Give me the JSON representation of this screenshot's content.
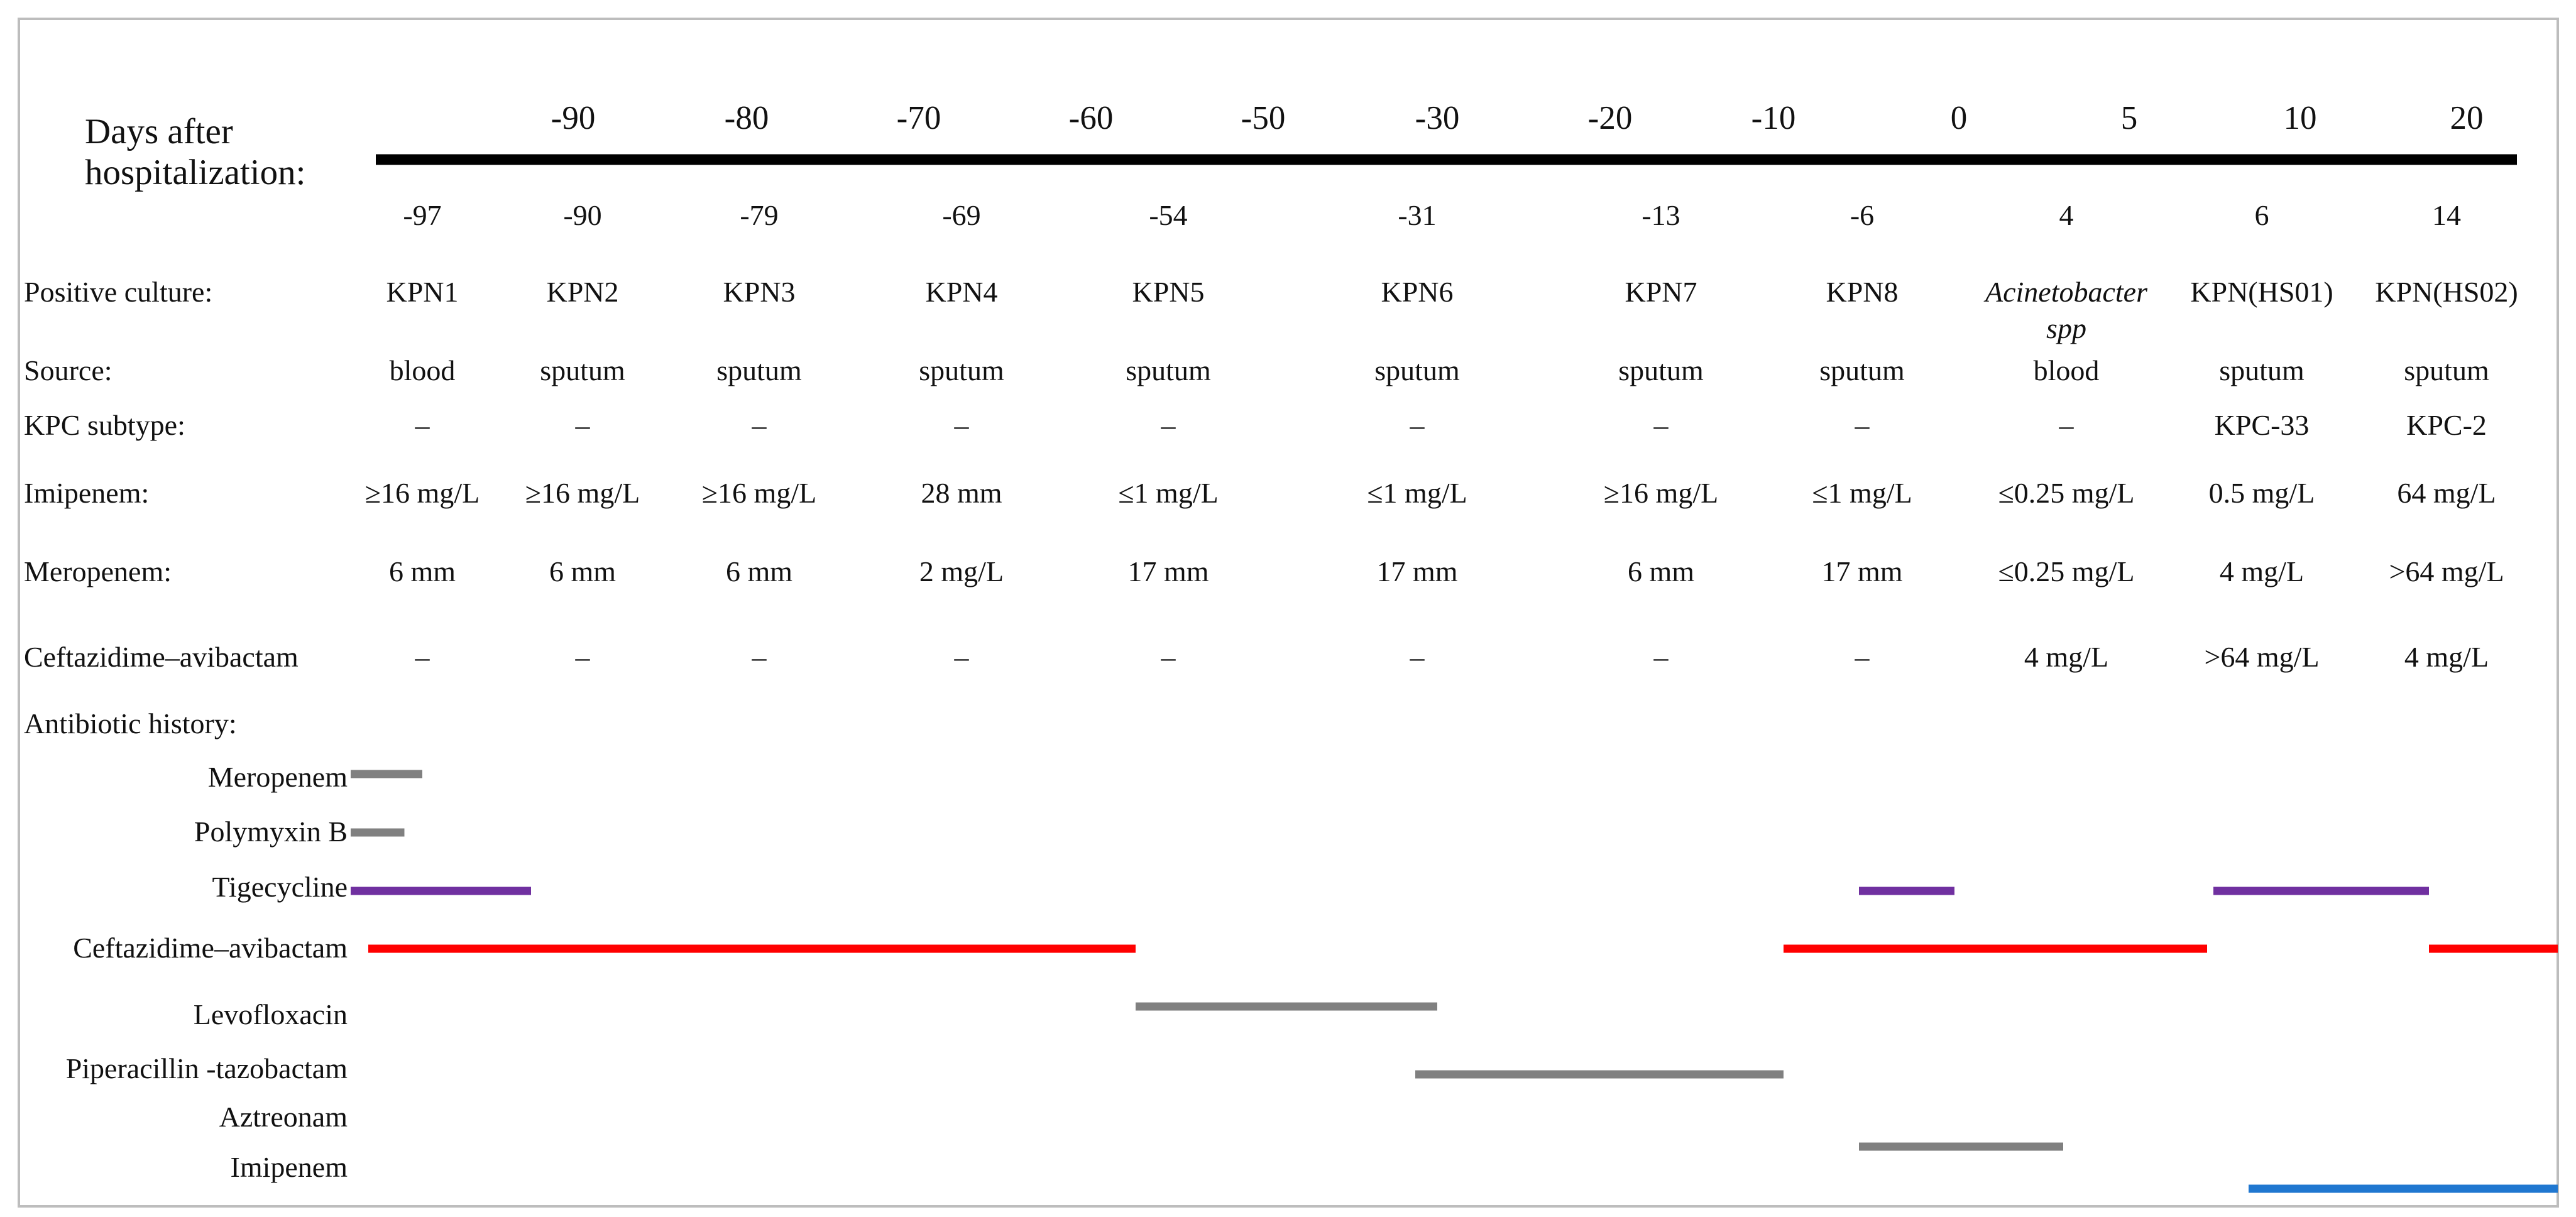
{
  "axis": {
    "title_lines": [
      "Days after",
      "hospitalization:"
    ],
    "ticks": [
      "-90",
      "-80",
      "-70",
      "-60",
      "-50",
      "-30",
      "-20",
      "-10",
      "0",
      "5",
      "10",
      "20"
    ]
  },
  "rows": [
    {
      "label": "",
      "cells": [
        "-97",
        "-90",
        "-79",
        "-69",
        "-54",
        "-31",
        "-13",
        "-6",
        "4",
        "6",
        "14"
      ]
    },
    {
      "label": "Positive culture:",
      "cells": [
        "KPN1",
        "KPN2",
        "KPN3",
        "KPN4",
        "KPN5",
        "KPN6",
        "KPN7",
        "KPN8",
        "Acinetobacter spp",
        "KPN(HS01)",
        "KPN(HS02)"
      ]
    },
    {
      "label": "Source:",
      "cells": [
        "blood",
        "sputum",
        "sputum",
        "sputum",
        "sputum",
        "sputum",
        "sputum",
        "sputum",
        "blood",
        "sputum",
        "sputum"
      ]
    },
    {
      "label": "KPC subtype:",
      "cells": [
        "–",
        "–",
        "–",
        "–",
        "–",
        "–",
        "–",
        "–",
        "–",
        "KPC-33",
        "KPC-2"
      ]
    },
    {
      "label": "Imipenem:",
      "cells": [
        "≥16 mg/L",
        "≥16 mg/L",
        "≥16 mg/L",
        "28 mm",
        "≤1 mg/L",
        "≤1 mg/L",
        "≥16 mg/L",
        "≤1 mg/L",
        "≤0.25 mg/L",
        "0.5 mg/L",
        "64 mg/L"
      ]
    },
    {
      "label": "Meropenem:",
      "cells": [
        "6 mm",
        "6 mm",
        "6 mm",
        "2 mg/L",
        "17 mm",
        "17 mm",
        "6 mm",
        "17 mm",
        "≤0.25 mg/L",
        "4 mg/L",
        ">64 mg/L"
      ]
    },
    {
      "label": "Ceftazidime–avibactam",
      "cells": [
        "–",
        "–",
        "–",
        "–",
        "–",
        "–",
        "–",
        "–",
        "4 mg/L",
        ">64 mg/L",
        "4 mg/L"
      ]
    }
  ],
  "antibiotic_history": {
    "label": "Antibiotic history:",
    "drugs": [
      {
        "name": "Meropenem",
        "color": "#808080",
        "segments": [
          [
            -97,
            -93
          ]
        ]
      },
      {
        "name": "Polymyxin B",
        "color": "#808080",
        "segments": [
          [
            -97,
            -94
          ]
        ]
      },
      {
        "name": "Tigecycline",
        "color": "#7030a0",
        "segments": [
          [
            -97,
            -87
          ],
          [
            -6,
            0
          ],
          [
            6,
            18
          ]
        ]
      },
      {
        "name": "Ceftazidime–avibactam",
        "color": "#ff0000",
        "segments": [
          [
            -96,
            -52
          ],
          [
            -10,
            5
          ],
          [
            18,
            23
          ]
        ]
      },
      {
        "name": "Levofloxacin",
        "color": "#808080",
        "segments": [
          [
            -52,
            -30
          ]
        ]
      },
      {
        "name": "Piperacillin -tazobactam",
        "color": "#808080",
        "segments": [
          [
            -31,
            -10
          ]
        ]
      },
      {
        "name": "Aztreonam",
        "color": "#808080",
        "segments": [
          [
            -6,
            4
          ]
        ]
      },
      {
        "name": "Imipenem",
        "color": "#1f77d0",
        "segments": [
          [
            8,
            23
          ]
        ]
      }
    ]
  }
}
